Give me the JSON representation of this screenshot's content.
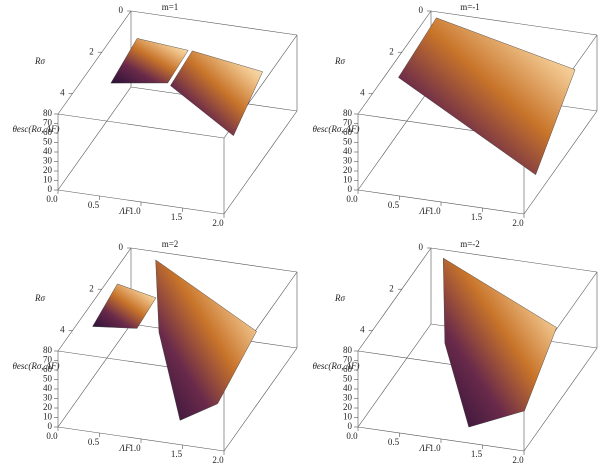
{
  "chart_data": [
    {
      "type": "surface3d",
      "title": "m=1",
      "xlabel": "ΛF",
      "ylabel": "Rσ",
      "zlabel": "θesc(Rσ, ΛF)",
      "xlim": [
        0,
        2
      ],
      "xticks": [
        {
          "value": 0,
          "label": "0.0"
        },
        {
          "value": 0.5,
          "label": "0.5"
        },
        {
          "value": 1,
          "label": "1.0"
        },
        {
          "value": 1.5,
          "label": "1.5"
        },
        {
          "value": 2,
          "label": "2.0"
        }
      ],
      "ylim": [
        0,
        5
      ],
      "yticks": [
        0,
        2,
        4
      ],
      "zlim": [
        0,
        80
      ],
      "zticks": [
        0,
        10,
        20,
        30,
        40,
        50,
        60,
        70,
        80
      ]
    },
    {
      "type": "surface3d",
      "title": "m=-1",
      "xlabel": "ΛF",
      "ylabel": "Rσ",
      "zlabel": "θesc(Rσ, ΛF)",
      "xlim": [
        0,
        2
      ],
      "xticks": [
        {
          "value": 0,
          "label": "0.0"
        },
        {
          "value": 0.5,
          "label": "0.5"
        },
        {
          "value": 1,
          "label": "1.0"
        },
        {
          "value": 1.5,
          "label": "1.5"
        },
        {
          "value": 2,
          "label": "2.0"
        }
      ],
      "ylim": [
        0,
        5
      ],
      "yticks": [
        0,
        2,
        4
      ],
      "zlim": [
        0,
        80
      ],
      "zticks": [
        0,
        10,
        20,
        30,
        40,
        50,
        60,
        70,
        80
      ]
    },
    {
      "type": "surface3d",
      "title": "m=2",
      "xlabel": "ΛF",
      "ylabel": "Rσ",
      "zlabel": "θesc(Rσ, ΛF)",
      "xlim": [
        0,
        2
      ],
      "xticks": [
        {
          "value": 0,
          "label": "0.0"
        },
        {
          "value": 0.5,
          "label": "0.5"
        },
        {
          "value": 1,
          "label": "1.0"
        },
        {
          "value": 1.5,
          "label": "1.5"
        },
        {
          "value": 2,
          "label": "2.0"
        }
      ],
      "ylim": [
        0,
        5
      ],
      "yticks": [
        0,
        2,
        4
      ],
      "zlim": [
        0,
        80
      ],
      "zticks": [
        0,
        10,
        20,
        30,
        40,
        50,
        60,
        70,
        80
      ]
    },
    {
      "type": "surface3d",
      "title": "m=-2",
      "xlabel": "ΛF",
      "ylabel": "Rσ",
      "zlabel": "θesc(Rσ, ΛF)",
      "xlim": [
        0,
        2
      ],
      "xticks": [
        {
          "value": 0,
          "label": "0.0"
        },
        {
          "value": 0.5,
          "label": "0.5"
        },
        {
          "value": 1,
          "label": "1.0"
        },
        {
          "value": 1.5,
          "label": "1.5"
        },
        {
          "value": 2,
          "label": "2.0"
        }
      ],
      "ylim": [
        0,
        5
      ],
      "yticks": [
        0,
        2,
        4
      ],
      "zlim": [
        0,
        80
      ],
      "zticks": [
        0,
        10,
        20,
        30,
        40,
        50,
        60,
        70,
        80
      ]
    }
  ]
}
